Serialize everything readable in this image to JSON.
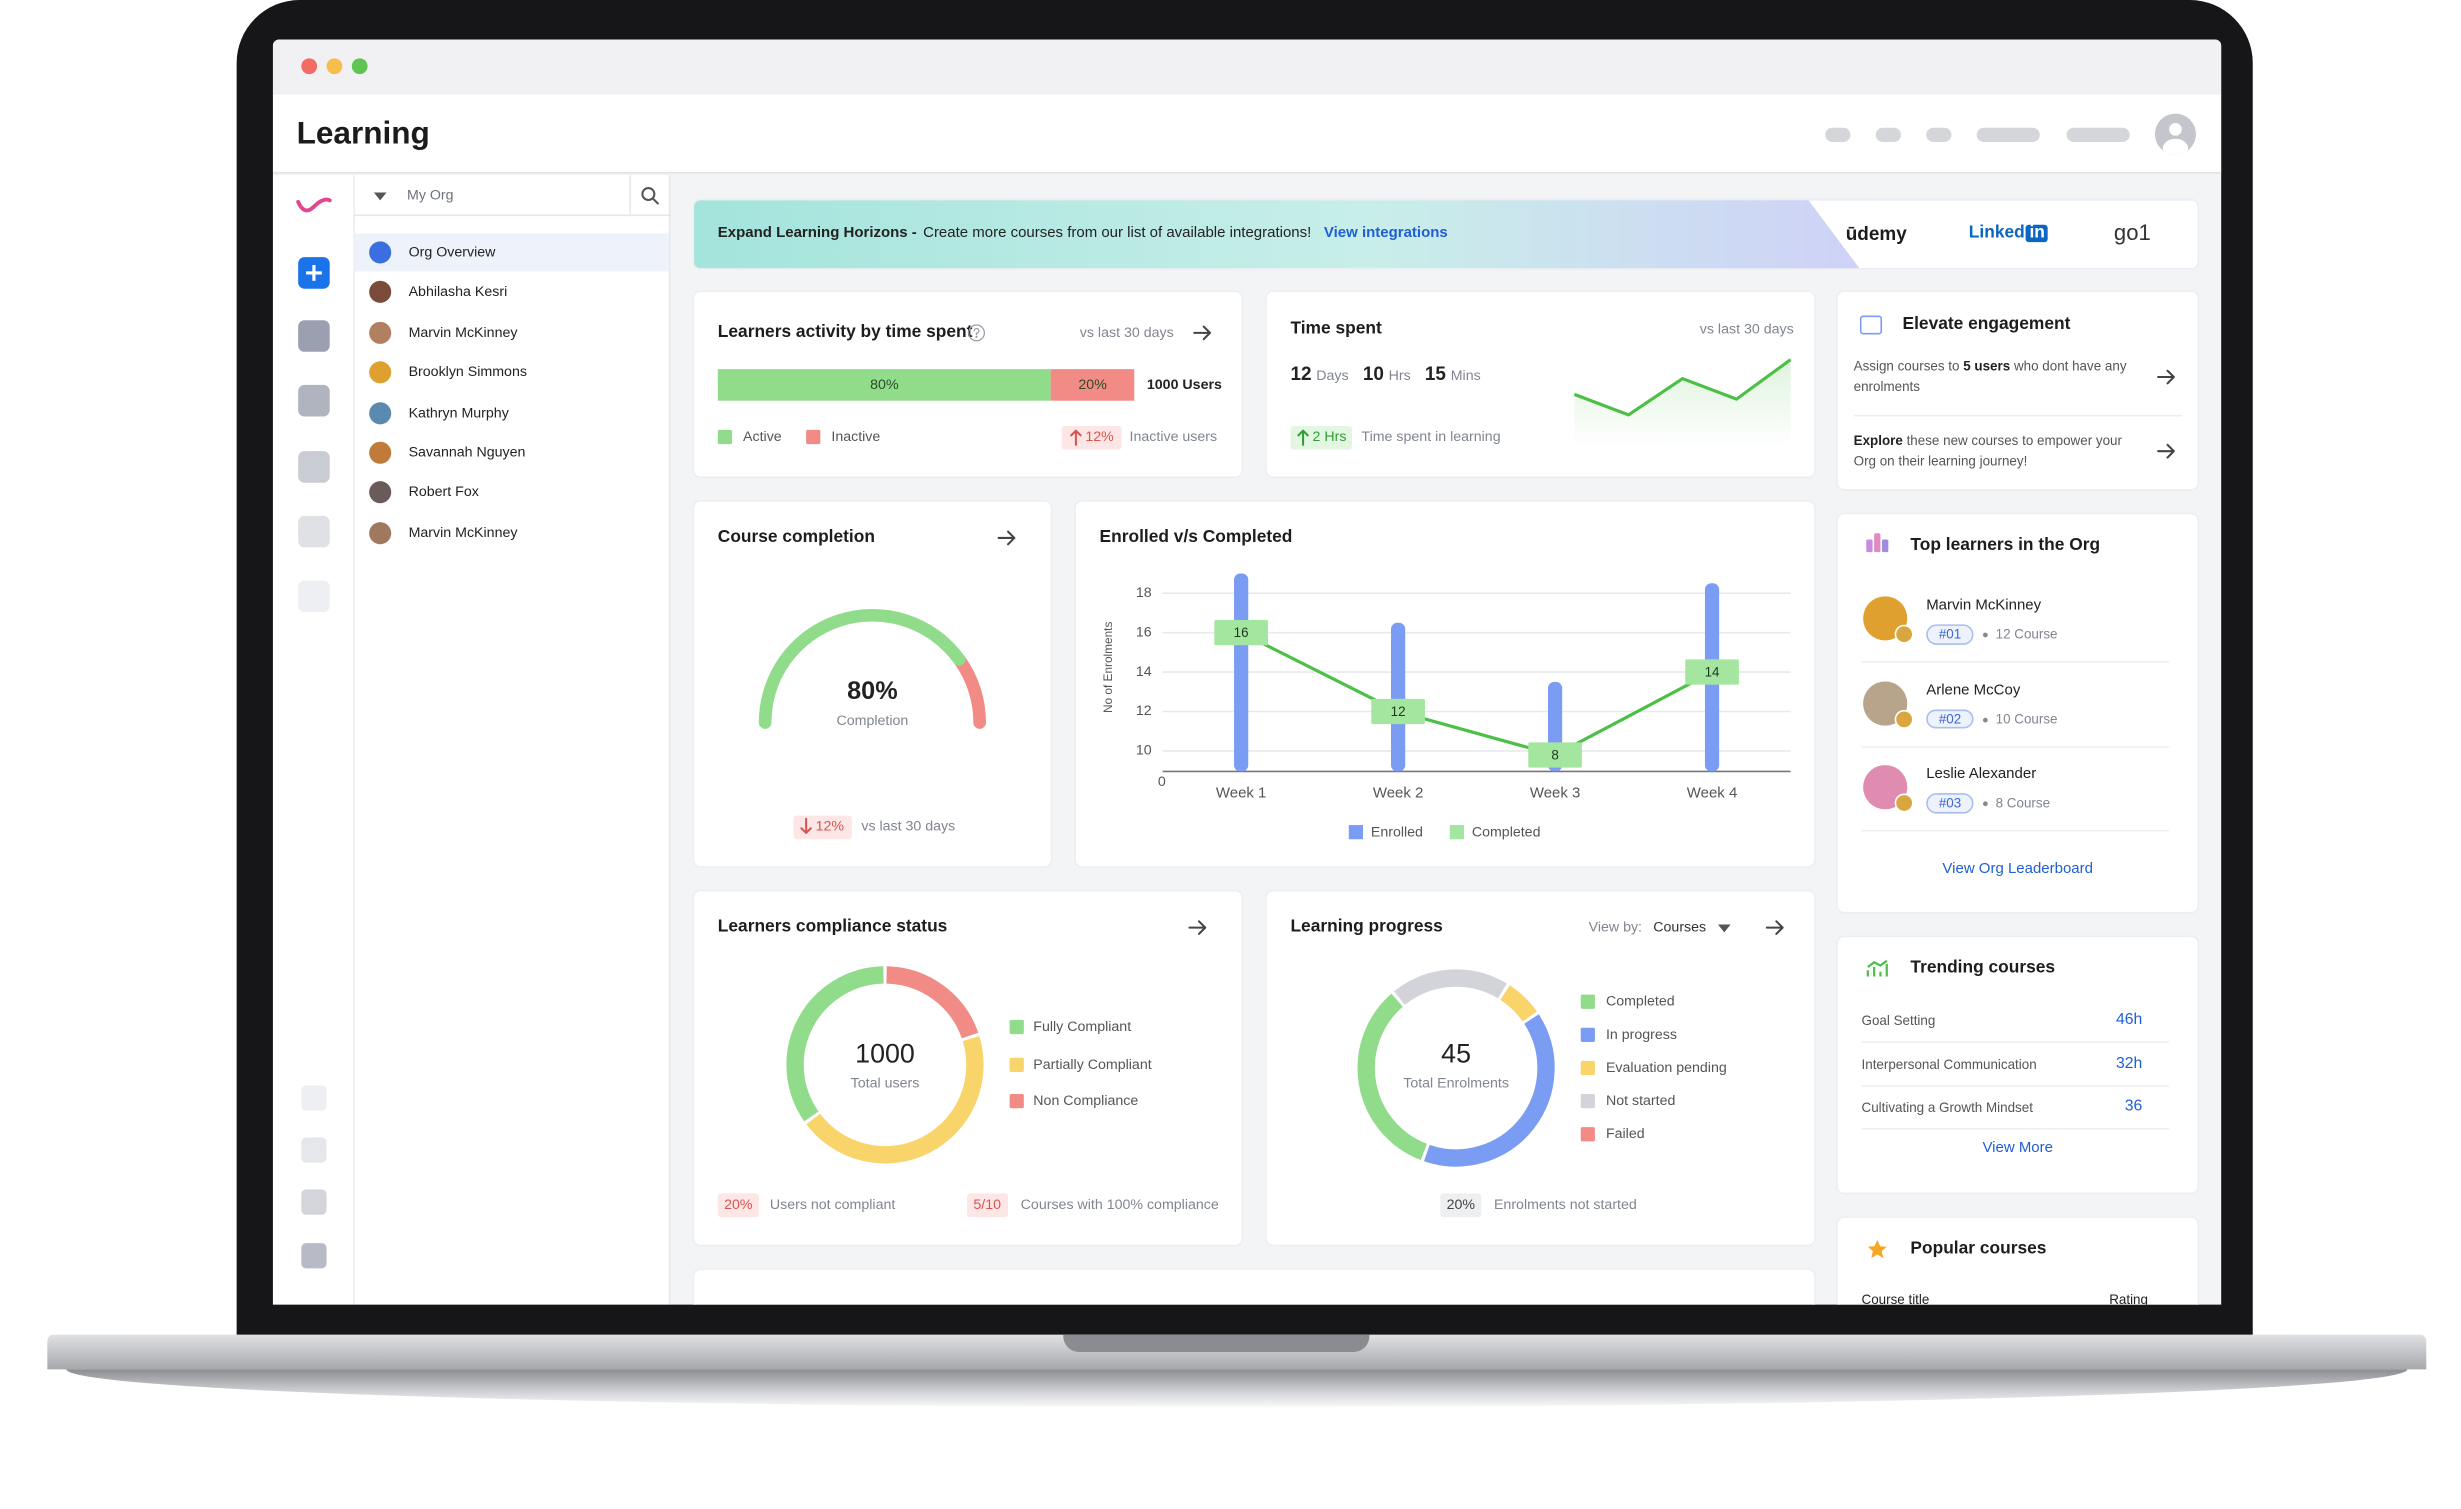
{
  "window": {
    "title": "Learning"
  },
  "sidebar": {
    "scope": "My Org",
    "items": [
      "Org Overview",
      "Abhilasha Kesri",
      "Marvin McKinney",
      "Brooklyn Simmons",
      "Kathryn Murphy",
      "Savannah Nguyen",
      "Robert Fox",
      "Marvin McKinney"
    ]
  },
  "banner": {
    "title": "Expand Learning Horizons -",
    "text": "Create more courses from our list of available integrations!",
    "link": "View integrations",
    "partners": {
      "udemy": "ūdemy",
      "linkedin": "Linked",
      "linkedin_badge": "in",
      "go1": "go1"
    }
  },
  "activity": {
    "title": "Learners activity by time spent",
    "period": "vs last 30 days",
    "names": [
      "Active",
      "Inactive"
    ],
    "values": [
      80,
      20
    ],
    "value_labels": [
      "80%",
      "20%"
    ],
    "colors": [
      "#90dc8b",
      "#f28b86"
    ],
    "total": "1000 Users",
    "change": "12%",
    "change_text": "Inactive users"
  },
  "time_spent": {
    "title": "Time spent",
    "period": "vs last 30 days",
    "parts": [
      {
        "value": 12,
        "unit": "Days"
      },
      {
        "value": 10,
        "unit": "Hrs"
      },
      {
        "value": 15,
        "unit": "Mins"
      }
    ],
    "trend": [
      13,
      0,
      23,
      10,
      35
    ],
    "change": "2 Hrs",
    "change_text": "Time spent in learning"
  },
  "completion": {
    "title": "Course completion",
    "value": 80,
    "value_label": "80%",
    "caption": "Completion",
    "change": "12%",
    "period": "vs last 30 days",
    "colors": [
      "#90dc8b",
      "#f28b86"
    ]
  },
  "enrolled_chart": {
    "type": "bar",
    "title": "Enrolled v/s Completed",
    "y_label": "No of Enrolments",
    "categories": [
      "Week 1",
      "Week 2",
      "Week 3",
      "Week 4"
    ],
    "ylim": [
      0,
      20
    ],
    "yticks": [
      0,
      10,
      12,
      14,
      16,
      18
    ],
    "grid": true,
    "series": [
      {
        "name": "Enrolled",
        "color": "#7b9cf3",
        "values": [
          19,
          16.5,
          13.5,
          18.5
        ]
      },
      {
        "name": "Completed",
        "color": "#4cbf45",
        "values": [
          16,
          12,
          8,
          14
        ]
      }
    ]
  },
  "compliance": {
    "title": "Learners compliance status",
    "total": 1000,
    "total_label": "Total users",
    "names": [
      "Fully Compliant",
      "Partially Compliant",
      "Non Compliance"
    ],
    "values": [
      35,
      45,
      20
    ],
    "colors": [
      "#90dc8b",
      "#f9d46b",
      "#f28b86"
    ],
    "stats": [
      {
        "value": "20%",
        "text": "Users not compliant"
      },
      {
        "value": "5/10",
        "text": "Courses with 100% compliance"
      }
    ]
  },
  "progress": {
    "title": "Learning progress",
    "view_by_label": "View by:",
    "view_by": "Courses",
    "total": 45,
    "total_label": "Total Enrolments",
    "names": [
      "Completed",
      "In progress",
      "Evaluation pending",
      "Not started",
      "Failed"
    ],
    "values": [
      15,
      18,
      3,
      9,
      0
    ],
    "colors": [
      "#90dc8b",
      "#7b9cf3",
      "#f9d46b",
      "#d2d4da",
      "#f28b86"
    ],
    "stat": {
      "value": "20%",
      "text": "Enrolments not started"
    }
  },
  "engagement": {
    "title": "Elevate engagement",
    "items": [
      {
        "before": "Assign courses to",
        "bold": "5 users",
        "after": "who dont have any enrolments"
      },
      {
        "bold": "Explore",
        "after": "these new courses to empower your Org on their learning journey!"
      }
    ]
  },
  "top_learners": {
    "title": "Top learners in the Org",
    "learners": [
      {
        "name": "Marvin McKinney",
        "rank": "#01",
        "courses": "12 Course"
      },
      {
        "name": "Arlene McCoy",
        "rank": "#02",
        "courses": "10 Course"
      },
      {
        "name": "Leslie Alexander",
        "rank": "#03",
        "courses": "8 Course"
      }
    ],
    "link": "View Org Leaderboard"
  },
  "trending": {
    "title": "Trending courses",
    "courses": [
      {
        "name": "Goal Setting",
        "hours": "46h"
      },
      {
        "name": "Interpersonal Communication",
        "hours": "32h"
      },
      {
        "name": "Cultivating a Growth Mindset",
        "hours": "36"
      }
    ],
    "link": "View More"
  },
  "popular": {
    "title": "Popular courses",
    "columns": [
      "Course title",
      "Rating"
    ]
  }
}
